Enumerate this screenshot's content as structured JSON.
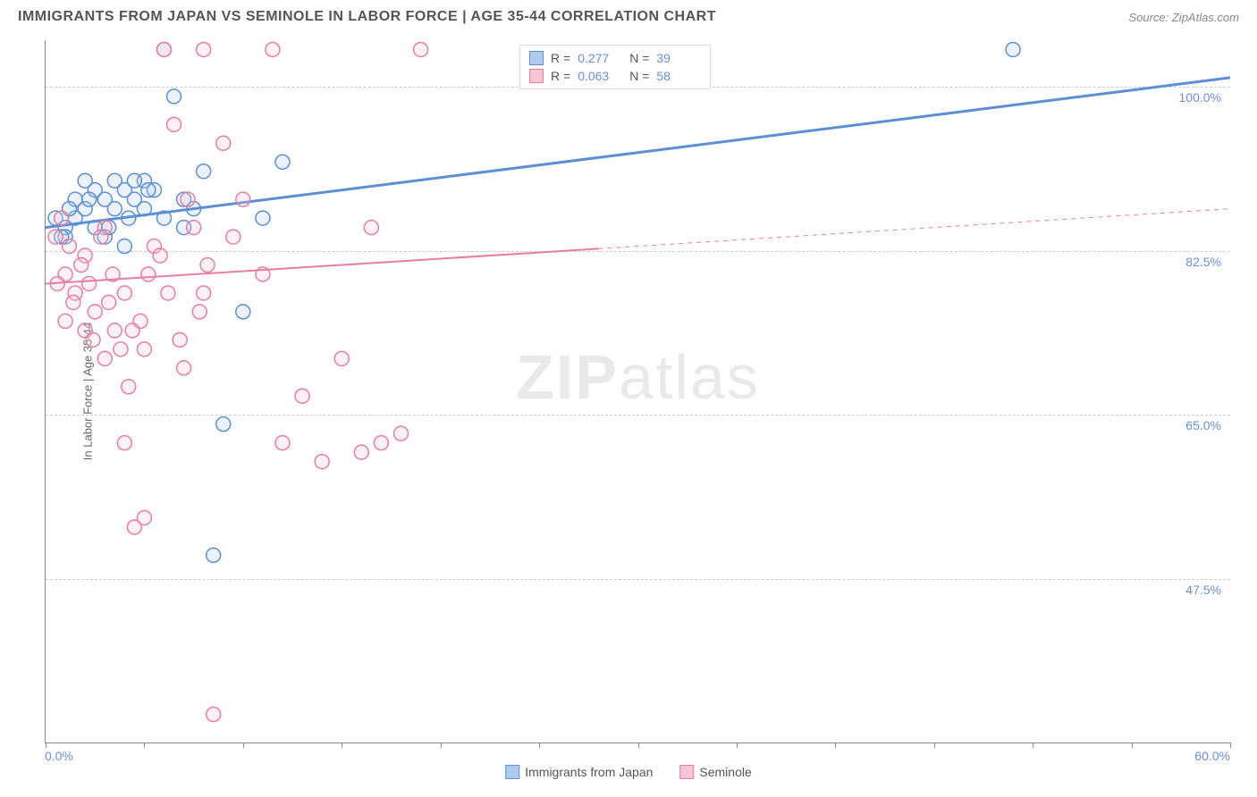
{
  "header": {
    "title": "IMMIGRANTS FROM JAPAN VS SEMINOLE IN LABOR FORCE | AGE 35-44 CORRELATION CHART",
    "source_label": "Source: ",
    "source_value": "ZipAtlas.com"
  },
  "watermark": {
    "part1": "ZIP",
    "part2": "atlas"
  },
  "chart": {
    "type": "scatter",
    "background_color": "#ffffff",
    "grid_color": "#cccccc",
    "axis_color": "#888888",
    "y_axis_label": "In Labor Force | Age 35-44",
    "x_range": [
      0,
      60
    ],
    "y_range": [
      30,
      105
    ],
    "y_ticks": [
      {
        "value": 100.0,
        "label": "100.0%"
      },
      {
        "value": 82.5,
        "label": "82.5%"
      },
      {
        "value": 65.0,
        "label": "65.0%"
      },
      {
        "value": 47.5,
        "label": "47.5%"
      }
    ],
    "x_ticks": [
      0,
      5,
      10,
      15,
      20,
      25,
      30,
      35,
      40,
      45,
      50,
      55,
      60
    ],
    "x_tick_labels": [
      {
        "value": 0,
        "label": "0.0%"
      },
      {
        "value": 60,
        "label": "60.0%"
      }
    ],
    "marker_radius": 8,
    "marker_stroke_width": 1.5,
    "marker_fill_opacity": 0.25,
    "series": [
      {
        "id": "japan",
        "name": "Immigrants from Japan",
        "color": "#5b8fd6",
        "fill": "#aecbee",
        "r_value": "0.277",
        "n_value": "39",
        "trend": {
          "y_at_x0": 85,
          "y_at_x60": 101,
          "solid_until_x": 60,
          "line_width": 3
        },
        "points": [
          [
            0.5,
            86
          ],
          [
            1,
            85
          ],
          [
            1.5,
            88
          ],
          [
            2,
            87
          ],
          [
            2.5,
            89
          ],
          [
            3,
            88
          ],
          [
            3.5,
            90
          ],
          [
            4,
            89
          ],
          [
            4.5,
            88
          ],
          [
            5,
            90
          ],
          [
            5.5,
            89
          ],
          [
            6,
            104
          ],
          [
            6.5,
            99
          ],
          [
            7,
            88
          ],
          [
            7.5,
            87
          ],
          [
            8,
            91
          ],
          [
            8.5,
            50
          ],
          [
            9,
            64
          ],
          [
            10,
            76
          ],
          [
            11,
            86
          ],
          [
            12,
            92
          ],
          [
            49,
            104
          ],
          [
            3,
            84
          ],
          [
            4,
            83
          ],
          [
            2,
            90
          ],
          [
            1,
            84
          ],
          [
            6,
            86
          ],
          [
            7,
            85
          ],
          [
            5,
            87
          ],
          [
            3.5,
            87
          ],
          [
            4.5,
            90
          ],
          [
            2.5,
            85
          ],
          [
            1.5,
            86
          ],
          [
            0.8,
            84
          ],
          [
            1.2,
            87
          ],
          [
            2.2,
            88
          ],
          [
            3.2,
            85
          ],
          [
            4.2,
            86
          ],
          [
            5.2,
            89
          ]
        ]
      },
      {
        "id": "seminole",
        "name": "Seminole",
        "color": "#e87da0",
        "fill": "#f7c6d5",
        "r_value": "0.063",
        "n_value": "58",
        "trend": {
          "y_at_x0": 79,
          "y_at_x60": 87,
          "solid_until_x": 28,
          "line_width": 2
        },
        "points": [
          [
            0.5,
            84
          ],
          [
            1,
            80
          ],
          [
            1.5,
            78
          ],
          [
            2,
            82
          ],
          [
            2.5,
            76
          ],
          [
            3,
            85
          ],
          [
            3.5,
            74
          ],
          [
            4,
            62
          ],
          [
            4.5,
            53
          ],
          [
            5,
            54
          ],
          [
            5.5,
            83
          ],
          [
            6,
            104
          ],
          [
            6.5,
            96
          ],
          [
            7,
            70
          ],
          [
            7.5,
            85
          ],
          [
            8,
            78
          ],
          [
            8.5,
            33
          ],
          [
            9,
            94
          ],
          [
            9.5,
            84
          ],
          [
            10,
            88
          ],
          [
            11,
            80
          ],
          [
            11.5,
            104
          ],
          [
            12,
            62
          ],
          [
            13,
            67
          ],
          [
            14,
            60
          ],
          [
            15,
            71
          ],
          [
            16,
            61
          ],
          [
            16.5,
            85
          ],
          [
            17,
            62
          ],
          [
            18,
            63
          ],
          [
            19,
            104
          ],
          [
            0.8,
            86
          ],
          [
            1.2,
            83
          ],
          [
            1.8,
            81
          ],
          [
            2.2,
            79
          ],
          [
            2.8,
            84
          ],
          [
            3.2,
            77
          ],
          [
            3.8,
            72
          ],
          [
            4.2,
            68
          ],
          [
            4.8,
            75
          ],
          [
            5.2,
            80
          ],
          [
            5.8,
            82
          ],
          [
            6.2,
            78
          ],
          [
            6.8,
            73
          ],
          [
            7.2,
            88
          ],
          [
            7.8,
            76
          ],
          [
            8.2,
            81
          ],
          [
            1,
            75
          ],
          [
            2,
            74
          ],
          [
            3,
            71
          ],
          [
            4,
            78
          ],
          [
            5,
            72
          ],
          [
            0.6,
            79
          ],
          [
            1.4,
            77
          ],
          [
            2.4,
            73
          ],
          [
            3.4,
            80
          ],
          [
            4.4,
            74
          ],
          [
            8,
            104
          ]
        ]
      }
    ]
  },
  "legend_top": {
    "r_label": "R =",
    "n_label": "N ="
  },
  "bottom_legend": {
    "items": [
      "japan",
      "seminole"
    ]
  }
}
